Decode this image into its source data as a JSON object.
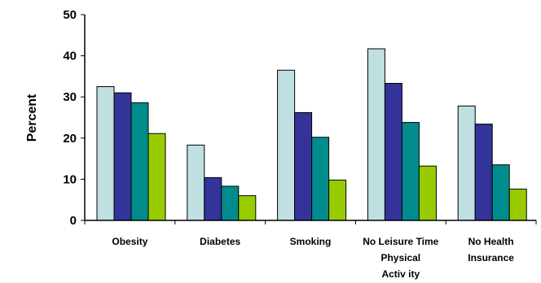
{
  "chart_data": {
    "type": "bar",
    "title": "",
    "xlabel": "",
    "ylabel": "Percent",
    "ylim": [
      0,
      50
    ],
    "yticks": [
      0,
      10,
      20,
      30,
      40,
      50
    ],
    "grid": false,
    "legend": "none",
    "categories": [
      [
        "Obesity"
      ],
      [
        "Diabetes"
      ],
      [
        "Smoking"
      ],
      [
        "No Leisure Time",
        "Physical",
        "Activ ity"
      ],
      [
        "No Health",
        "Insurance"
      ]
    ],
    "series": [
      {
        "color": "#c0dfe0",
        "values": [
          32.5,
          18.3,
          36.5,
          41.7,
          27.8
        ]
      },
      {
        "color": "#333399",
        "values": [
          31.0,
          10.4,
          26.2,
          33.3,
          23.4
        ]
      },
      {
        "color": "#008c8c",
        "values": [
          28.6,
          8.3,
          20.2,
          23.8,
          13.5
        ]
      },
      {
        "color": "#99cc00",
        "values": [
          21.1,
          6.0,
          9.8,
          13.2,
          7.6
        ]
      }
    ]
  }
}
